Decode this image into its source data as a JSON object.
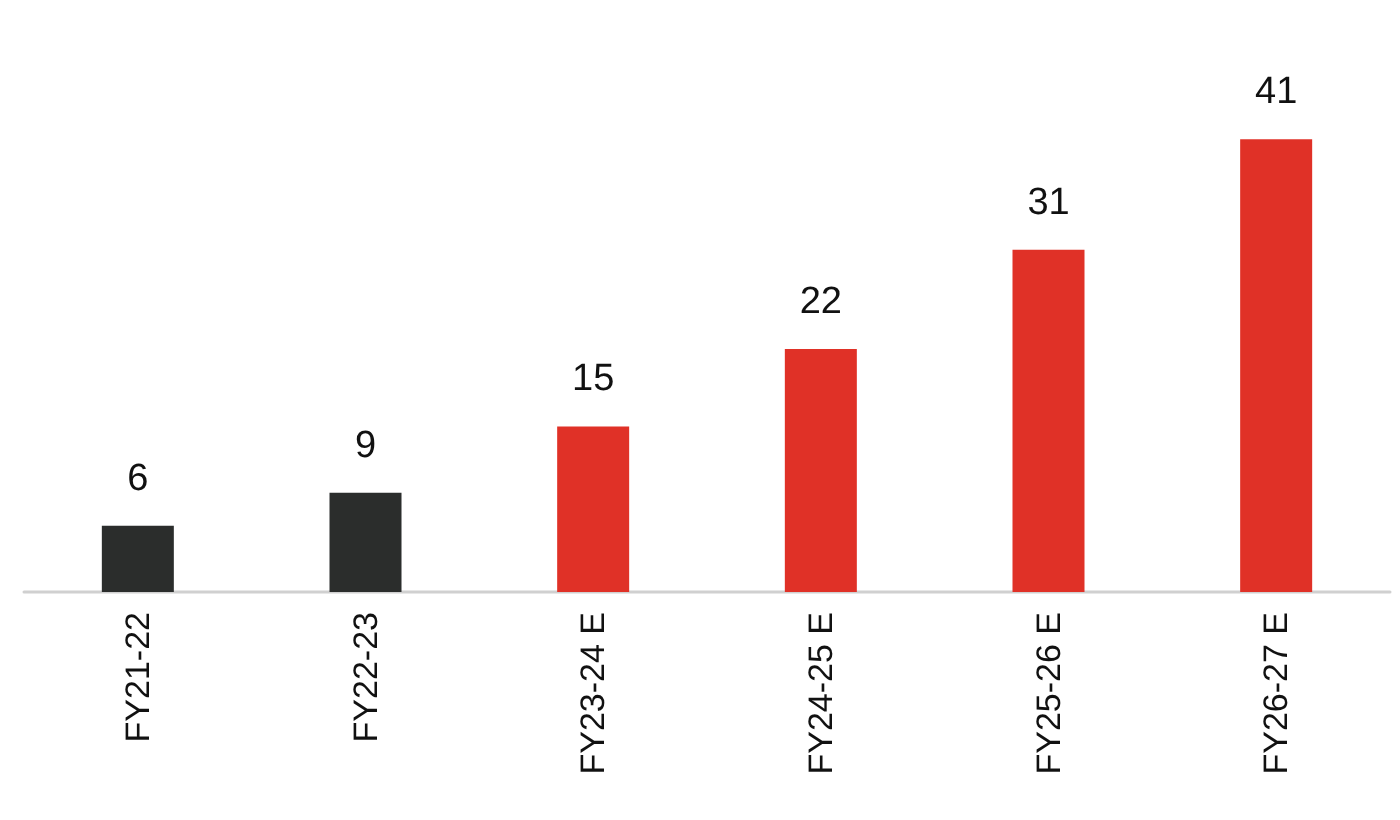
{
  "chart_data": {
    "type": "bar",
    "categories": [
      "FY21-22",
      "FY22-23",
      "FY23-24 E",
      "FY24-25 E",
      "FY25-26 E",
      "FY26-27 E"
    ],
    "values": [
      6,
      9,
      15,
      22,
      31,
      41
    ],
    "colors": [
      "#2b2d2c",
      "#2b2d2c",
      "#e03127",
      "#e03127",
      "#e03127",
      "#e03127"
    ],
    "data_labels": true
  }
}
